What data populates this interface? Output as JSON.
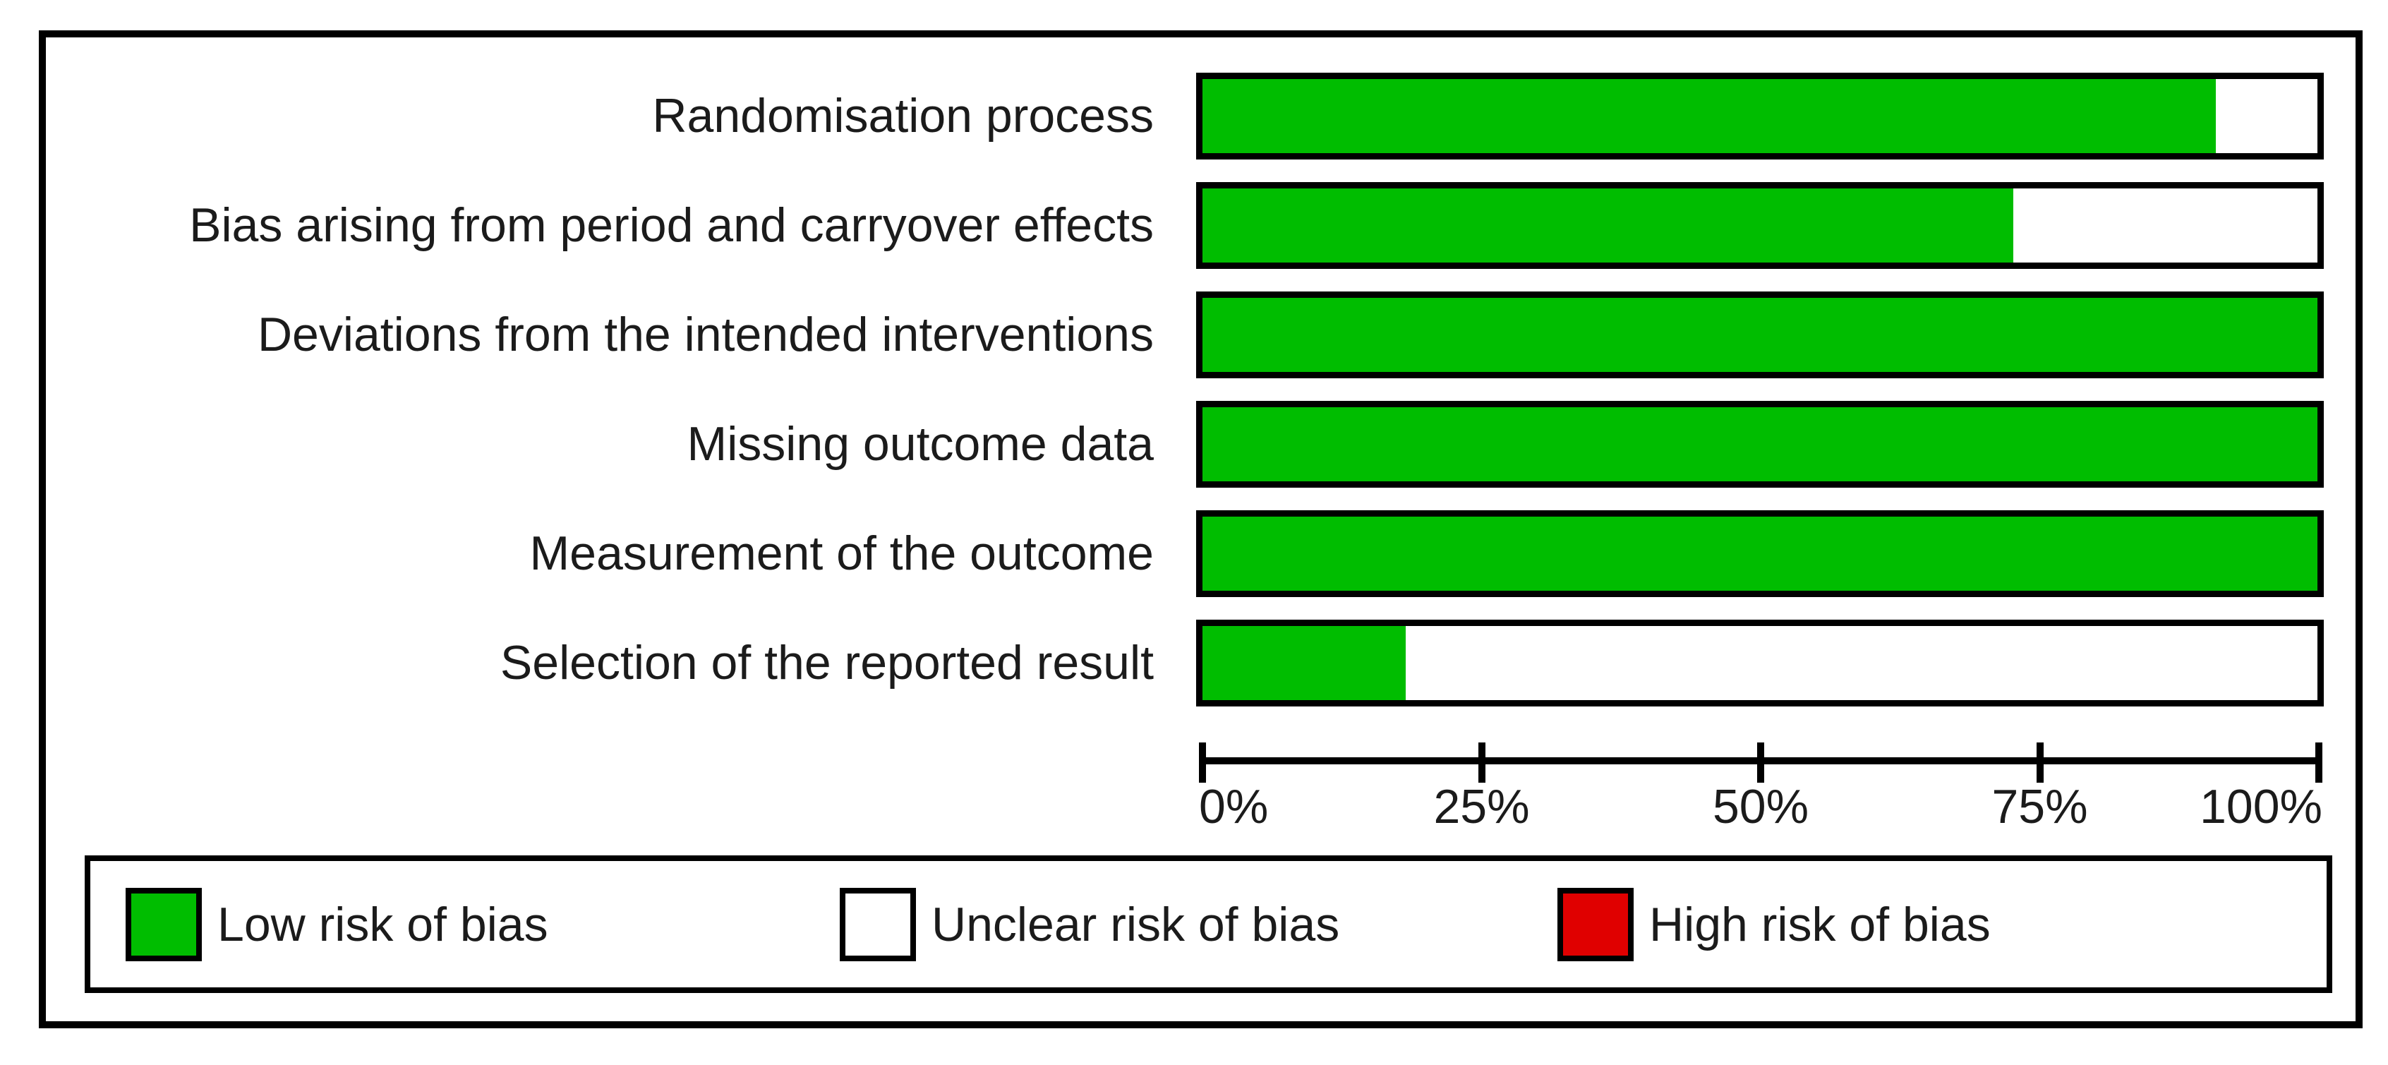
{
  "colors": {
    "low_risk": "#00BD00",
    "unclear_risk": "#FFFFFF",
    "high_risk": "#E00000",
    "border": "#000000",
    "text": "#1B1B1B",
    "background": "#FFFFFF"
  },
  "chart_data": {
    "type": "bar",
    "subtype": "horizontal_stacked_percentage",
    "title": "",
    "categories": [
      "Randomisation process",
      "Bias arising from period and carryover effects",
      "Deviations from the intended interventions",
      "Missing outcome data",
      "Measurement of the outcome",
      "Selection of the reported result"
    ],
    "series": [
      {
        "name": "Low risk of bias",
        "color": "#00BD00",
        "values": [
          90.9,
          72.7,
          100,
          100,
          100,
          18.2
        ]
      },
      {
        "name": "Unclear risk of bias",
        "color": "#FFFFFF",
        "values": [
          9.1,
          27.3,
          0,
          0,
          0,
          81.8
        ]
      },
      {
        "name": "High risk of bias",
        "color": "#E00000",
        "values": [
          0,
          0,
          0,
          0,
          0,
          0
        ]
      }
    ],
    "x_axis": {
      "tick_labels": [
        "0%",
        "25%",
        "50%",
        "75%",
        "100%"
      ],
      "range": [
        0,
        100
      ]
    },
    "legend": {
      "position": "bottom",
      "items": [
        {
          "label": "Low risk of bias",
          "color": "#00BD00"
        },
        {
          "label": "Unclear risk of bias",
          "color": "#FFFFFF"
        },
        {
          "label": "High risk of bias",
          "color": "#E00000"
        }
      ]
    },
    "grid": false
  },
  "layout_values": {
    "row_top_start": 50,
    "row_pitch": 155,
    "legend_item_lefts": [
      50,
      1062,
      2079
    ]
  }
}
